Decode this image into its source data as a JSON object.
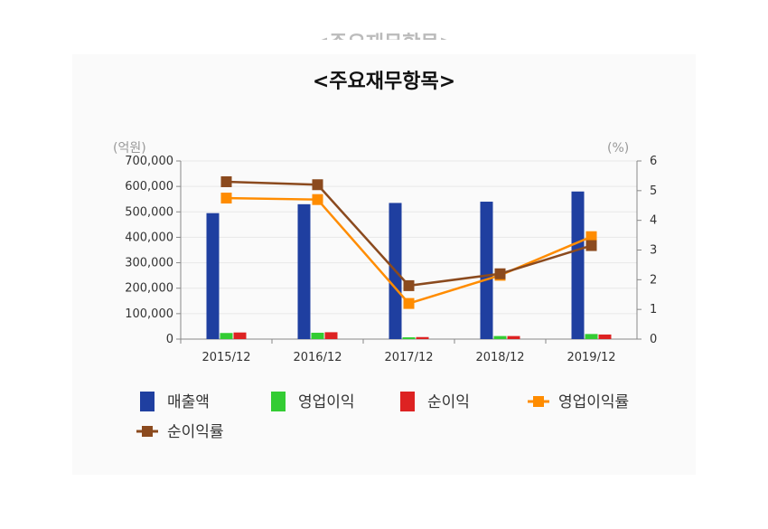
{
  "ghost_title": "<주요재무항목>",
  "chart_data": {
    "type": "bar",
    "title": "<주요재무항목>",
    "categories": [
      "2015/12",
      "2016/12",
      "2017/12",
      "2018/12",
      "2019/12"
    ],
    "left_unit": "(억원)",
    "right_unit": "(%)",
    "ylim_left": [
      0,
      700000
    ],
    "yticks_left": [
      "0",
      "100,000",
      "200,000",
      "300,000",
      "400,000",
      "500,000",
      "600,000",
      "700,000"
    ],
    "ylim_right": [
      0,
      6
    ],
    "yticks_right": [
      "0",
      "1",
      "2",
      "3",
      "4",
      "5",
      "6"
    ],
    "series": [
      {
        "name": "매출액",
        "type": "bar",
        "axis": "left",
        "color": "#1f3fa0",
        "values": [
          495000,
          530000,
          535000,
          540000,
          580000
        ]
      },
      {
        "name": "영업이익",
        "type": "bar",
        "axis": "left",
        "color": "#33cc33",
        "values": [
          24000,
          25000,
          7000,
          12000,
          20000
        ]
      },
      {
        "name": "순이익",
        "type": "bar",
        "axis": "left",
        "color": "#dd2222",
        "values": [
          26000,
          27000,
          8000,
          12000,
          18000
        ]
      },
      {
        "name": "영업이익률",
        "type": "line",
        "axis": "right",
        "color": "#ff8c00",
        "values": [
          4.75,
          4.7,
          1.2,
          2.15,
          3.45
        ]
      },
      {
        "name": "순이익률",
        "type": "line",
        "axis": "right",
        "color": "#8b4a1e",
        "values": [
          5.3,
          5.2,
          1.8,
          2.2,
          3.15
        ]
      }
    ],
    "grid": true,
    "legend_position": "bottom"
  }
}
